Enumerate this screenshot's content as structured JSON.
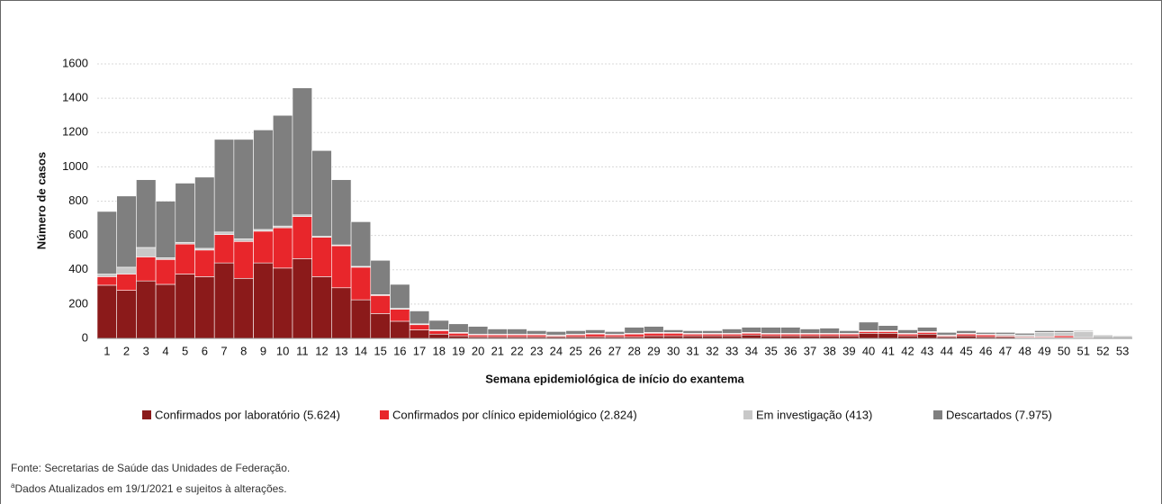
{
  "chart_data": {
    "type": "bar",
    "stacked": true,
    "ylabel": "Número de casos",
    "xlabel": "Semana epidemiológica de início do exantema",
    "categories": [
      "1",
      "2",
      "3",
      "4",
      "5",
      "6",
      "7",
      "8",
      "9",
      "10",
      "11",
      "12",
      "13",
      "14",
      "15",
      "16",
      "17",
      "18",
      "19",
      "20",
      "21",
      "22",
      "23",
      "24",
      "25",
      "26",
      "27",
      "28",
      "29",
      "30",
      "31",
      "32",
      "33",
      "34",
      "35",
      "36",
      "37",
      "38",
      "39",
      "40",
      "41",
      "42",
      "43",
      "44",
      "45",
      "46",
      "47",
      "48",
      "49",
      "50",
      "51",
      "52",
      "53"
    ],
    "series": [
      {
        "name": "Confirmados por laboratório (5.624)",
        "color": "#8b1a1a",
        "values": [
          310,
          280,
          335,
          315,
          375,
          360,
          440,
          350,
          440,
          410,
          465,
          360,
          295,
          225,
          145,
          100,
          50,
          25,
          15,
          10,
          10,
          10,
          10,
          10,
          10,
          10,
          10,
          10,
          15,
          15,
          15,
          15,
          15,
          20,
          15,
          15,
          15,
          15,
          15,
          30,
          30,
          15,
          25,
          10,
          15,
          10,
          10,
          5,
          5,
          5,
          0,
          0,
          0
        ]
      },
      {
        "name": "Confirmados por clínico epidemiológico (2.824)",
        "color": "#e8262b",
        "values": [
          50,
          95,
          140,
          145,
          175,
          155,
          165,
          215,
          185,
          235,
          245,
          230,
          245,
          190,
          105,
          70,
          30,
          20,
          15,
          10,
          10,
          10,
          10,
          5,
          10,
          15,
          10,
          15,
          15,
          15,
          10,
          10,
          10,
          10,
          10,
          10,
          10,
          10,
          10,
          10,
          10,
          10,
          10,
          5,
          10,
          10,
          5,
          5,
          5,
          10,
          5,
          0,
          0
        ]
      },
      {
        "name": "Em investigação (413)",
        "color": "#c8c8c8",
        "values": [
          15,
          40,
          55,
          10,
          10,
          10,
          15,
          15,
          10,
          10,
          10,
          5,
          5,
          5,
          5,
          5,
          5,
          5,
          5,
          5,
          5,
          5,
          5,
          5,
          5,
          5,
          5,
          5,
          5,
          5,
          5,
          5,
          5,
          5,
          5,
          5,
          5,
          5,
          5,
          5,
          5,
          5,
          5,
          5,
          5,
          5,
          10,
          10,
          25,
          20,
          35,
          20,
          15
        ]
      },
      {
        "name": "Descartados (7.975)",
        "color": "#7f7f7f",
        "values": [
          365,
          415,
          395,
          330,
          345,
          415,
          540,
          580,
          580,
          645,
          740,
          500,
          380,
          260,
          200,
          140,
          75,
          55,
          50,
          45,
          30,
          30,
          20,
          20,
          20,
          20,
          15,
          35,
          35,
          15,
          15,
          15,
          25,
          30,
          35,
          35,
          25,
          30,
          15,
          50,
          30,
          20,
          25,
          15,
          15,
          10,
          10,
          10,
          10,
          10,
          5,
          0,
          0
        ]
      }
    ],
    "ylim": [
      0,
      1600
    ],
    "yticks": [
      0,
      200,
      400,
      600,
      800,
      1000,
      1200,
      1400,
      1600
    ],
    "grid": true
  },
  "notes": {
    "source": "Fonte: Secretarias de Saúde das Unidades de Federação.",
    "marker": "a",
    "update": "Dados Atualizados em 19/1/2021 e sujeitos à alterações."
  }
}
